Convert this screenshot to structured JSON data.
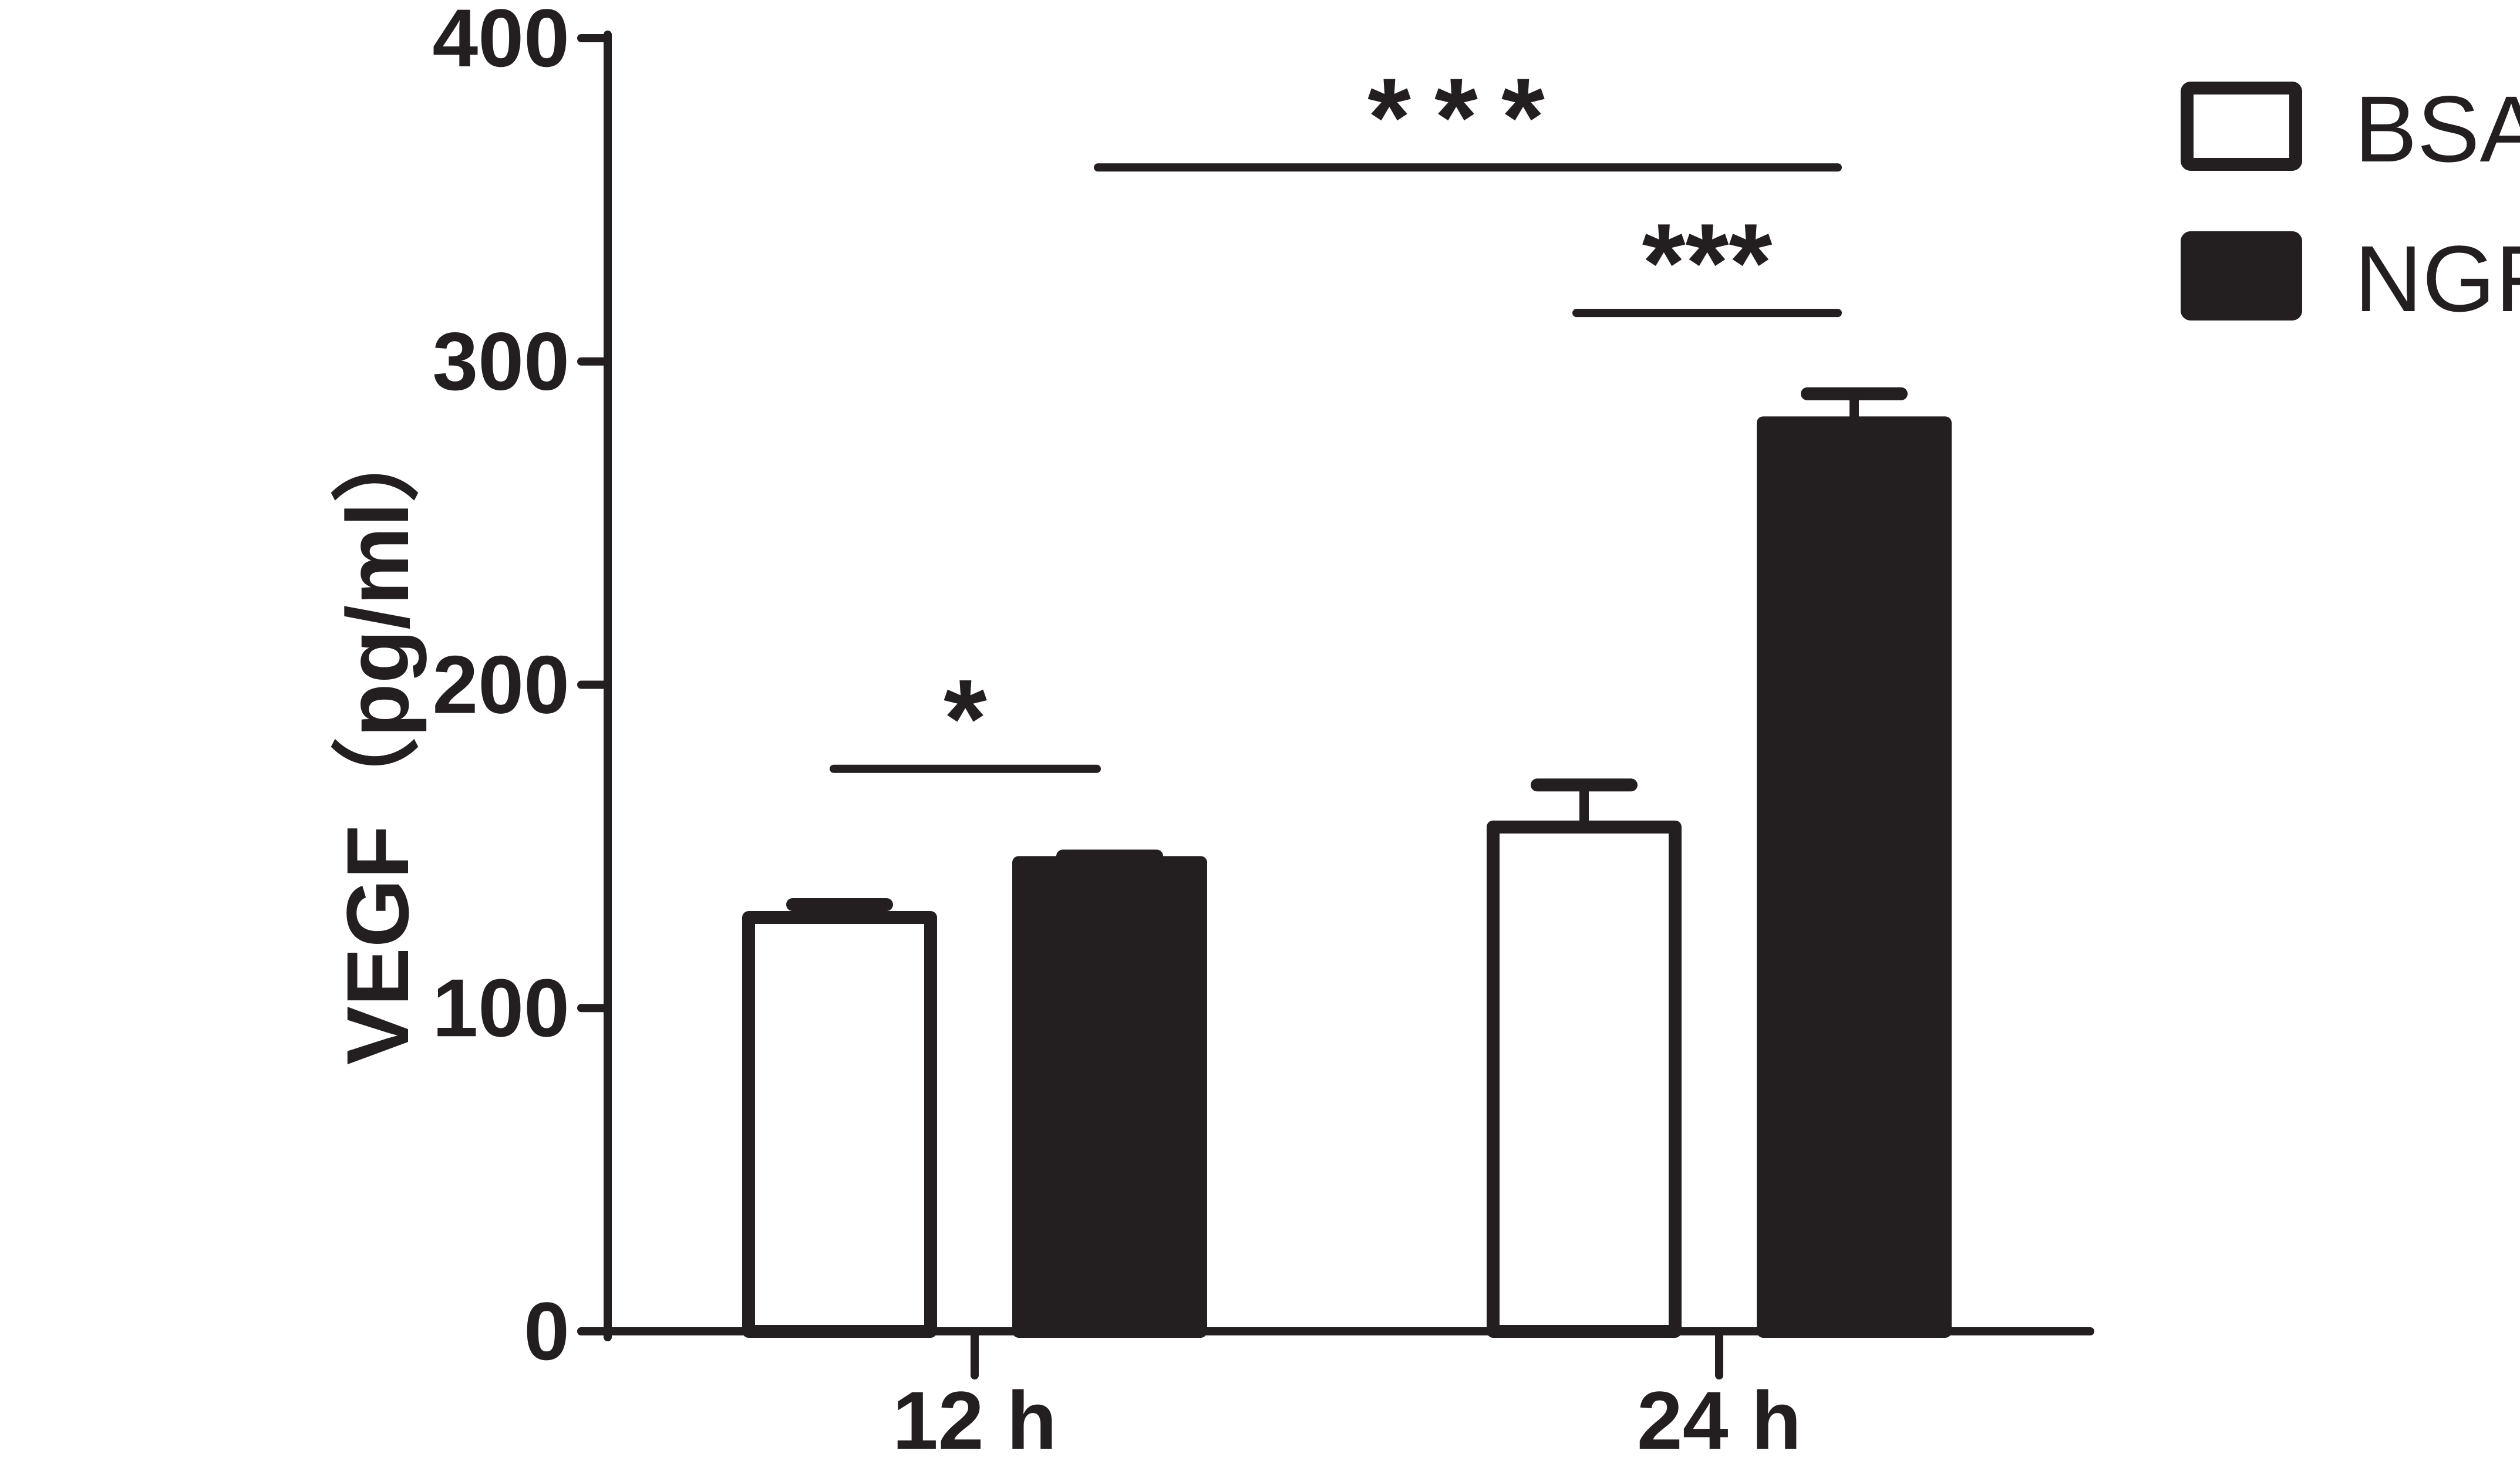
{
  "chart_data": {
    "type": "bar",
    "title": "",
    "xlabel": "",
    "ylabel": "VEGF（pg/ml）",
    "ylim": [
      0,
      400
    ],
    "yticks": [
      0,
      100,
      200,
      300,
      400
    ],
    "categories": [
      "12 h",
      "24 h"
    ],
    "series": [
      {
        "name": "BSA",
        "fill": "#ffffff",
        "values": [
          128,
          156
        ],
        "errors": [
          4,
          13
        ]
      },
      {
        "name": "NGF",
        "fill": "#231f20",
        "values": [
          145,
          281
        ],
        "errors": [
          2,
          9
        ]
      }
    ],
    "legend": {
      "position": "top-right",
      "entries": [
        "BSA",
        "NGF"
      ]
    },
    "grid": false,
    "significance": [
      {
        "label": "*",
        "from": "12 h BSA",
        "to": "12 h NGF",
        "y": 174
      },
      {
        "label": "***",
        "from": "24 h BSA",
        "to": "24 h NGF",
        "y": 315
      },
      {
        "label": "***",
        "from": "12 h NGF",
        "to": "24 h NGF",
        "y": 360
      }
    ],
    "colors": {
      "ink": "#231f20",
      "background": "#ffffff"
    }
  }
}
